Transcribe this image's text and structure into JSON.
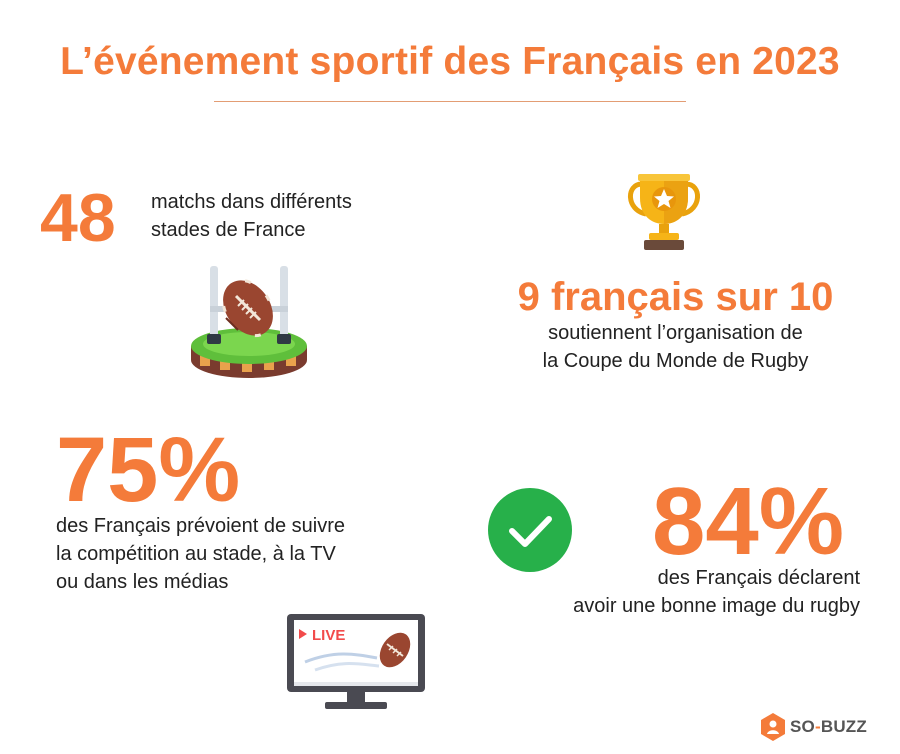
{
  "title": "L’événement sportif des Français en 2023",
  "stats": {
    "matches": {
      "value": "48",
      "text_lines": [
        "matchs dans différents",
        "stades de France"
      ]
    },
    "support": {
      "value": "9 français sur 10",
      "text_lines": [
        "soutiennent l’organisation de",
        "la Coupe du Monde de Rugby"
      ]
    },
    "follow": {
      "value": "75%",
      "text_lines": [
        "des Français prévoient de suivre",
        "la compétition au stade, à la TV",
        "ou dans les médias"
      ]
    },
    "image": {
      "value": "84%",
      "text_lines": [
        "des Français déclarent",
        "avoir une bonne image du rugby"
      ]
    }
  },
  "tv": {
    "label": "LIVE"
  },
  "brand": {
    "left": "SO",
    "dash": "-",
    "right": "BUZZ"
  },
  "colors": {
    "accent": "#F47B3A",
    "check_green": "#27B04A",
    "gold": "#F6B417"
  },
  "icons": [
    "trophy-icon",
    "rugby-field-icon",
    "check-icon",
    "tv-icon",
    "brand-logo-icon"
  ]
}
